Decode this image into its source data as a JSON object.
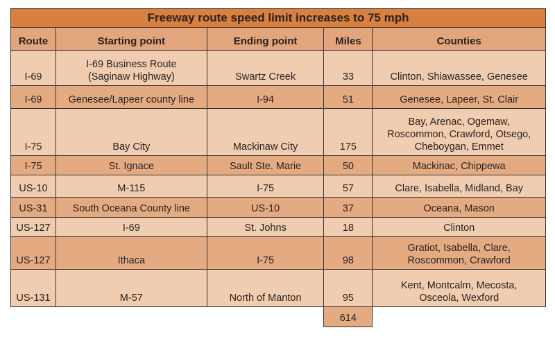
{
  "title": "Freeway route speed limit increases to 75 mph",
  "columns": [
    "Route",
    "Starting point",
    "Ending point",
    "Miles",
    "Counties"
  ],
  "rows": [
    {
      "route": "I-69",
      "start": [
        "I-69 Business Route",
        "(Saginaw Highway)"
      ],
      "end": "Swartz Creek",
      "miles": "33",
      "counties": [
        "Clinton, Shiawassee, Genesee"
      ]
    },
    {
      "route": "I-69",
      "start": [
        "Genesee/Lapeer county line"
      ],
      "end": "I-94",
      "miles": "51",
      "counties": [
        "Genesee, Lapeer, St. Clair"
      ]
    },
    {
      "route": "I-75",
      "start": [
        "Bay City"
      ],
      "end": "Mackinaw City",
      "miles": "175",
      "counties": [
        "Bay, Arenac, Ogemaw,",
        "Roscommon, Crawford, Otsego,",
        "Cheboygan, Emmet"
      ]
    },
    {
      "route": "I-75",
      "start": [
        "St. Ignace"
      ],
      "end": "Sault Ste. Marie",
      "miles": "50",
      "counties": [
        "Mackinac, Chippewa"
      ]
    },
    {
      "route": "US-10",
      "start": [
        "M-115"
      ],
      "end": "I-75",
      "miles": "57",
      "counties": [
        "Clare, Isabella, Midland, Bay"
      ]
    },
    {
      "route": "US-31",
      "start": [
        "South Oceana County line"
      ],
      "end": "US-10",
      "miles": "37",
      "counties": [
        "Oceana, Mason"
      ]
    },
    {
      "route": "US-127",
      "start": [
        "I-69"
      ],
      "end": "St. Johns",
      "miles": "18",
      "counties": [
        "Clinton"
      ]
    },
    {
      "route": "US-127",
      "start": [
        "Ithaca"
      ],
      "end": "I-75",
      "miles": "98",
      "counties": [
        "Gratiot, Isabella, Clare,",
        "Roscommon, Crawford"
      ]
    },
    {
      "route": "US-131",
      "start": [
        "M-57"
      ],
      "end": "North of Manton",
      "miles": "95",
      "counties": [
        "Kent, Montcalm, Mecosta,",
        "Osceola, Wexford"
      ]
    }
  ],
  "total_miles": "614",
  "colors": {
    "title_bg": "#d9803f",
    "header_bg": "#e2a57c",
    "row_light": "#f0cdb0",
    "row_dark": "#e4ab83",
    "border": "#3a302c"
  }
}
